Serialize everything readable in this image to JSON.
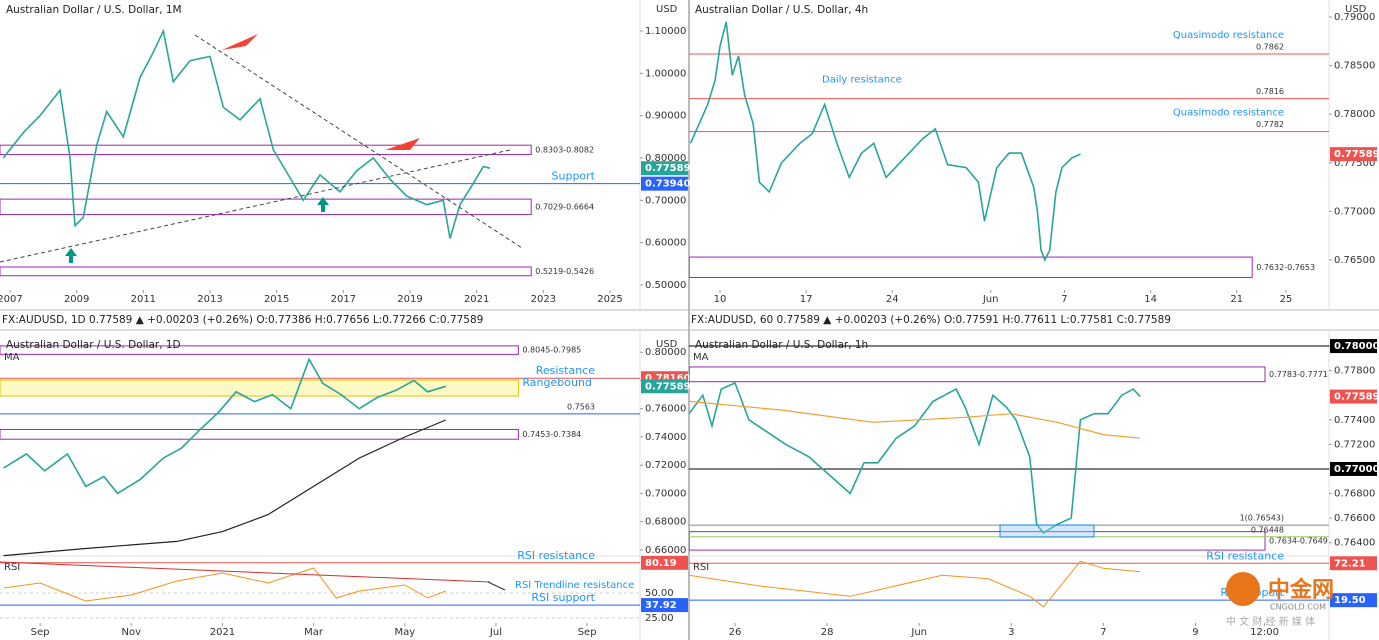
{
  "chart_data": [
    {
      "type": "line",
      "title": "Australian Dollar / U.S. Dollar, 1M",
      "unit": "USD",
      "xlim": [
        2006.7,
        2025.9
      ],
      "xticks": [
        2007,
        2009,
        2011,
        2013,
        2015,
        2017,
        2019,
        2021,
        2023,
        2025
      ],
      "ylim": [
        0.4882,
        1.1733
      ],
      "yticks": [
        {
          "value": 0.5,
          "label": "0.50000"
        },
        {
          "value": 0.6,
          "label": "0.60000"
        },
        {
          "value": 0.7,
          "label": "0.70000"
        },
        {
          "value": 0.8,
          "label": "0.80000"
        },
        {
          "value": 0.9,
          "label": "0.90000"
        },
        {
          "value": 1.0,
          "label": "1.00000"
        },
        {
          "value": 1.1,
          "label": "1.10000"
        }
      ],
      "series": [
        {
          "color": "#26a69a",
          "x": [
            2006.8,
            2007.4,
            2007.9,
            2008.5,
            2008.8,
            2008.95,
            2009.2,
            2009.6,
            2009.9,
            2010.4,
            2010.9,
            2011.3,
            2011.6,
            2011.9,
            2012.4,
            2013.0,
            2013.4,
            2013.9,
            2014.5,
            2014.9,
            2015.5,
            2015.8,
            2016.3,
            2016.9,
            2017.4,
            2017.9,
            2018.4,
            2018.9,
            2019.5,
            2020.0,
            2020.2,
            2020.5,
            2020.9,
            2021.2,
            2021.4
          ],
          "values": [
            0.8,
            0.86,
            0.9,
            0.96,
            0.8,
            0.64,
            0.66,
            0.83,
            0.91,
            0.85,
            0.99,
            1.05,
            1.1,
            0.98,
            1.03,
            1.04,
            0.92,
            0.89,
            0.94,
            0.82,
            0.74,
            0.7,
            0.76,
            0.72,
            0.77,
            0.8,
            0.75,
            0.71,
            0.69,
            0.7,
            0.61,
            0.69,
            0.74,
            0.78,
            0.7759
          ]
        }
      ],
      "zones": [
        {
          "label": "0.8303-0.8082",
          "range": [
            0.8303,
            0.8082
          ],
          "color": "#9c27b0"
        },
        {
          "label": "0.7029-0.6664",
          "range": [
            0.7029,
            0.6664
          ],
          "color": "#9c27b0"
        },
        {
          "label": "0.5219-0.5426",
          "range": [
            0.5219,
            0.5426
          ],
          "color": "#9c27b0"
        }
      ],
      "levels": [
        {
          "value": 0.7394,
          "label": "Support",
          "color": "#2962ff",
          "tag": "0.73940"
        }
      ],
      "price": {
        "value": 0.77589,
        "label": "0.77589",
        "color": "#26a69a"
      }
    },
    {
      "type": "line",
      "title": "Australian Dollar / U.S. Dollar, 4h",
      "unit": "USD",
      "xlim": [
        7.48,
        59.5
      ],
      "xticks": [
        10,
        17,
        24,
        {
          "value": 32,
          "label": "Jun"
        },
        {
          "value": 38,
          "label": "7"
        },
        {
          "value": 45,
          "label": "14"
        },
        {
          "value": 52,
          "label": "21"
        },
        {
          "value": 56,
          "label": "25"
        }
      ],
      "ylim": [
        0.76191,
        0.79175
      ],
      "yticks": [
        {
          "value": 0.765,
          "label": "0.76500"
        },
        {
          "value": 0.77,
          "label": "0.77000"
        },
        {
          "value": 0.775,
          "label": "0.77500"
        },
        {
          "value": 0.78,
          "label": "0.78000"
        },
        {
          "value": 0.785,
          "label": "0.78500"
        },
        {
          "value": 0.79,
          "label": "0.79000"
        }
      ],
      "series": [
        {
          "color": "#26a69a",
          "x": [
            7.6,
            8.3,
            9,
            9.6,
            10,
            10.5,
            11,
            11.5,
            12,
            12.7,
            13.2,
            14,
            15,
            16.5,
            17.5,
            18.5,
            19.5,
            20.5,
            21.5,
            22.5,
            23.5,
            25,
            26.5,
            27.5,
            28.5,
            30,
            31,
            31.5,
            32.5,
            33.5,
            34.5,
            35.5,
            35.8,
            36.1,
            36.4,
            36.8,
            37.3,
            37.8,
            38.6,
            39.3
          ],
          "values": [
            0.777,
            0.779,
            0.781,
            0.7835,
            0.787,
            0.7895,
            0.784,
            0.786,
            0.782,
            0.779,
            0.773,
            0.772,
            0.775,
            0.777,
            0.778,
            0.781,
            0.777,
            0.7735,
            0.776,
            0.777,
            0.7735,
            0.7755,
            0.7775,
            0.7785,
            0.7748,
            0.7745,
            0.773,
            0.769,
            0.7745,
            0.776,
            0.776,
            0.7725,
            0.77,
            0.766,
            0.765,
            0.766,
            0.772,
            0.7745,
            0.7755,
            0.77589
          ]
        }
      ],
      "zones": [
        {
          "label": "0.7632-0.7653",
          "range": [
            0.7632,
            0.7653
          ],
          "color": "#9c27b0"
        }
      ],
      "levels": [
        {
          "value": 0.7862,
          "label": "0.7862",
          "color": "#ef5350",
          "note": "Quasimodo resistance"
        },
        {
          "value": 0.7816,
          "label": "0.7816",
          "color": "#ef5350",
          "note": "Daily resistance"
        },
        {
          "value": 0.7782,
          "label": "0.7782",
          "color": "#ef5350",
          "note": "Quasimodo resistance"
        }
      ],
      "price": {
        "value": 0.77589,
        "label": "0.77589",
        "color": "#ef5350"
      }
    },
    {
      "type": "line",
      "title": "Australian Dollar / U.S. Dollar, 1D",
      "unit": "USD",
      "header": "FX:AUDUSD, 1D 0.77589 ▲ +0.00203 (+0.26%) O:0.77386 H:0.77656 L:0.77266 C:0.77589",
      "xlim": [
        8.12,
        22.16
      ],
      "xticks": [
        {
          "value": 9,
          "label": "Sep"
        },
        {
          "value": 11,
          "label": "Nov"
        },
        {
          "value": 13,
          "label": "2021"
        },
        {
          "value": 15,
          "label": "Mar"
        },
        {
          "value": 17,
          "label": "May"
        },
        {
          "value": 19,
          "label": "Jul"
        },
        {
          "value": 21,
          "label": "Sep"
        }
      ],
      "ylim": [
        0.6564,
        0.8122
      ],
      "yticks": [
        {
          "value": 0.66,
          "label": "0.66000"
        },
        {
          "value": 0.68,
          "label": "0.68000"
        },
        {
          "value": 0.7,
          "label": "0.70000"
        },
        {
          "value": 0.72,
          "label": "0.72000"
        },
        {
          "value": 0.74,
          "label": "0.74000"
        },
        {
          "value": 0.76,
          "label": "0.76000"
        },
        {
          "value": 0.78,
          "label": "0.78000"
        },
        {
          "value": 0.8,
          "label": "0.80000"
        }
      ],
      "series": [
        {
          "color": "#26a69a",
          "x": [
            8.2,
            8.7,
            9.1,
            9.6,
            10.0,
            10.4,
            10.7,
            11.2,
            11.7,
            12.1,
            12.5,
            12.9,
            13.3,
            13.7,
            14.1,
            14.5,
            14.9,
            15.2,
            15.6,
            16.0,
            16.4,
            16.8,
            17.2,
            17.5,
            17.9
          ],
          "values": [
            0.718,
            0.728,
            0.716,
            0.728,
            0.705,
            0.712,
            0.7,
            0.71,
            0.725,
            0.732,
            0.745,
            0.757,
            0.772,
            0.765,
            0.77,
            0.76,
            0.795,
            0.778,
            0.77,
            0.76,
            0.768,
            0.773,
            0.78,
            0.772,
            0.77589
          ]
        },
        {
          "name": "MA",
          "color": "#222222",
          "x": [
            8.2,
            10,
            12,
            13,
            14,
            15,
            16,
            17,
            17.9
          ],
          "values": [
            0.656,
            0.661,
            0.666,
            0.673,
            0.685,
            0.705,
            0.725,
            0.74,
            0.752
          ]
        }
      ],
      "zones": [
        {
          "label": "0.8045-0.7985",
          "range": [
            0.8045,
            0.7985
          ],
          "color": "#9c27b0"
        },
        {
          "label": "Rangebound",
          "range": [
            0.7803,
            0.769
          ],
          "color": "#e0c200"
        },
        {
          "label": "0.7453-0.7384",
          "range": [
            0.7453,
            0.7384
          ],
          "color": "#9c27b0"
        }
      ],
      "levels": [
        {
          "value": 0.7816,
          "label": "Resistance",
          "color": "#ef5350",
          "tag": "0.78160"
        },
        {
          "value": 0.7563,
          "label": "0.7563",
          "color": "#2962ff"
        }
      ],
      "price": {
        "value": 0.77589,
        "label": "0.77589",
        "color": "#26a69a"
      },
      "rsi": {
        "label": "RSI",
        "ylim": [
          18,
          88
        ],
        "yticks": [
          {
            "value": 50,
            "label": "50.00"
          },
          {
            "value": 25,
            "label": "25.00"
          }
        ],
        "x": [
          8.2,
          9,
          10,
          11,
          12,
          13,
          14,
          15,
          15.5,
          16,
          17,
          17.5,
          17.9
        ],
        "values": [
          55,
          60,
          42,
          48,
          62,
          70,
          60,
          75,
          45,
          52,
          58,
          45,
          52
        ],
        "color": "#f7931a",
        "levels": [
          {
            "value": 80.19,
            "label": "RSI resistance",
            "color": "#ef5350",
            "tag": "80.19"
          },
          {
            "value": 37.92,
            "label": "RSI support",
            "color": "#2962ff",
            "tag": "37.92"
          }
        ],
        "note": "RSI Trendline resistance"
      }
    },
    {
      "type": "line",
      "title": "Australian Dollar / U.S. Dollar, 1h",
      "unit": "USD",
      "header": "FX:AUDUSD, 60 0.77589 ▲ +0.00203 (+0.26%) O:0.77591 H:0.77611 L:0.77581 C:0.77589",
      "xlim": [
        -1,
        12.9
      ],
      "xticks": [
        {
          "value": 0,
          "label": "26"
        },
        {
          "value": 2,
          "label": "28"
        },
        {
          "value": 4,
          "label": "Jun"
        },
        {
          "value": 6,
          "label": "3"
        },
        {
          "value": 8,
          "label": "7"
        },
        {
          "value": 10,
          "label": "9"
        },
        {
          "value": 11.5,
          "label": "12:00"
        }
      ],
      "ylim": [
        0.763,
        0.7809
      ],
      "yticks": [
        {
          "value": 0.764,
          "label": "0.76400"
        },
        {
          "value": 0.766,
          "label": "0.76600"
        },
        {
          "value": 0.768,
          "label": "0.76800"
        },
        {
          "value": 0.77,
          "label": "0.77000"
        },
        {
          "value": 0.772,
          "label": "0.77200"
        },
        {
          "value": 0.774,
          "label": "0.77400"
        },
        {
          "value": 0.776,
          "label": "0.77600"
        },
        {
          "value": 0.778,
          "label": "0.77800"
        },
        {
          "value": 0.78,
          "label": "0.78000"
        }
      ],
      "series": [
        {
          "color": "#26a69a",
          "x": [
            -1,
            -0.7,
            -0.5,
            -0.3,
            0,
            0.3,
            0.7,
            1.1,
            1.6,
            2.5,
            2.8,
            3.1,
            3.5,
            3.9,
            4.3,
            4.8,
            5.0,
            5.3,
            5.6,
            5.9,
            6.1,
            6.4,
            6.55,
            6.7,
            7.0,
            7.3,
            7.5,
            7.8,
            8.1,
            8.4,
            8.65,
            8.8
          ],
          "values": [
            0.7745,
            0.776,
            0.7735,
            0.7765,
            0.777,
            0.774,
            0.773,
            0.772,
            0.771,
            0.768,
            0.7705,
            0.7705,
            0.7725,
            0.7735,
            0.7755,
            0.7765,
            0.775,
            0.772,
            0.776,
            0.775,
            0.774,
            0.771,
            0.7655,
            0.7648,
            0.7655,
            0.766,
            0.774,
            0.7745,
            0.7745,
            0.776,
            0.7765,
            0.77589
          ]
        },
        {
          "name": "MA",
          "color": "#f0a030",
          "x": [
            -1,
            1,
            3,
            5,
            6,
            7,
            8,
            8.8
          ],
          "values": [
            0.7755,
            0.7748,
            0.7738,
            0.7742,
            0.7745,
            0.7738,
            0.7728,
            0.7725
          ]
        }
      ],
      "zones": [
        {
          "label": "0.7783-0.7771",
          "range": [
            0.7783,
            0.7771
          ],
          "color": "#9c27b0"
        },
        {
          "label": "0.7634-0.7649",
          "range": [
            0.7634,
            0.7649
          ],
          "color": "#9c27b0"
        }
      ],
      "levels": [
        {
          "value": 0.78,
          "color": "#000000",
          "tag": "0.78000"
        },
        {
          "value": 0.77,
          "color": "#000000",
          "tag": "0.77000"
        },
        {
          "value": 0.76543,
          "label": "1(0.76543)",
          "color": "#888888"
        },
        {
          "value": 0.76448,
          "label": "0.76448",
          "color": "#9ccc65"
        }
      ],
      "price": {
        "value": 0.77589,
        "label": "0.77589",
        "color": "#ef5350"
      },
      "rsi": {
        "label": "RSI",
        "ylim": [
          -16,
          84
        ],
        "x": [
          -1,
          0.5,
          2.5,
          4.5,
          5.5,
          6.4,
          6.7,
          7.5,
          8,
          8.8
        ],
        "values": [
          55,
          40,
          25,
          55,
          50,
          25,
          10,
          75,
          65,
          60
        ],
        "color": "#f7931a",
        "levels": [
          {
            "value": 72.21,
            "label": "RSI resistance",
            "color": "#ef5350",
            "tag": "72.21"
          },
          {
            "value": 19.5,
            "label": "RSI support",
            "color": "#2962ff",
            "tag": "19.50"
          }
        ]
      }
    }
  ],
  "watermark": {
    "brand": "中金网",
    "site": "CNGOLD.COM",
    "tagline": "中 文 财 经 新 媒 体"
  }
}
